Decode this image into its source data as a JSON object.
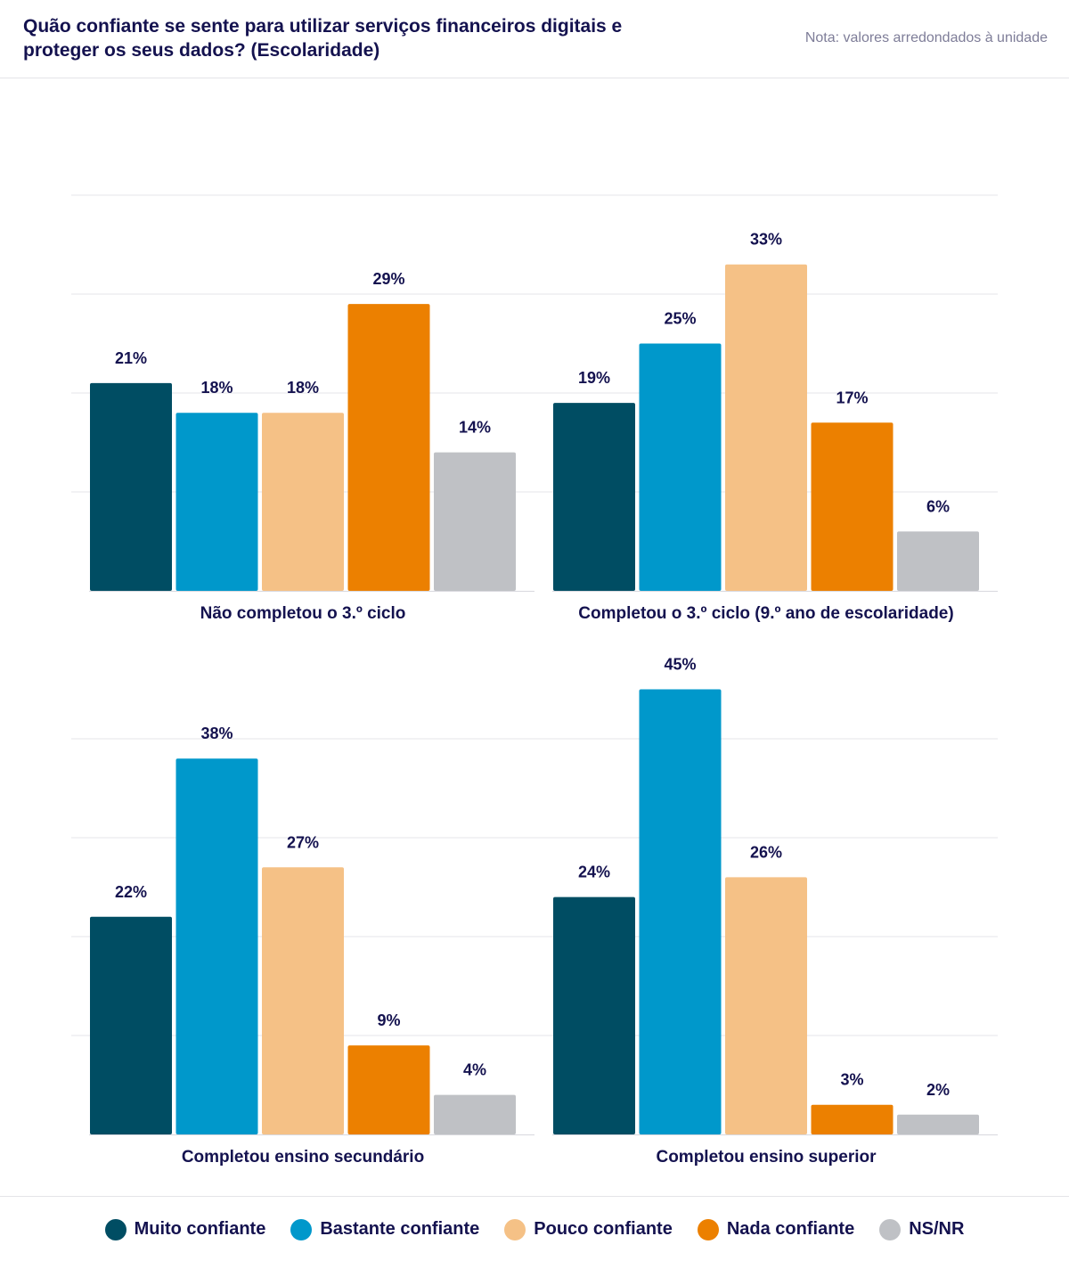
{
  "header": {
    "title": "Quão confiante se sente para utilizar serviços financeiros digitais e proteger os seus dados? (Escolaridade)",
    "note": "Nota: valores arredondados à unidade"
  },
  "legend": [
    {
      "label": "Muito confiante",
      "color": "#004d63"
    },
    {
      "label": "Bastante confiante",
      "color": "#0098cb"
    },
    {
      "label": "Pouco confiante",
      "color": "#f5c186"
    },
    {
      "label": "Nada confiante",
      "color": "#ec8000"
    },
    {
      "label": "NS/NR",
      "color": "#bfc1c5"
    }
  ],
  "chart_data": {
    "type": "bar",
    "series_names": [
      "Muito confiante",
      "Bastante confiante",
      "Pouco confiante",
      "Nada confiante",
      "NS/NR"
    ],
    "grid": true,
    "panels": [
      {
        "category": "Não completou o 3.º ciclo",
        "values": [
          21,
          18,
          18,
          29,
          14
        ],
        "labels": [
          "21%",
          "18%",
          "18%",
          "29%",
          "14%"
        ]
      },
      {
        "category": "Completou o 3.º ciclo (9.º ano de escolaridade)",
        "values": [
          19,
          25,
          33,
          17,
          6
        ],
        "labels": [
          "19%",
          "25%",
          "33%",
          "17%",
          "6%"
        ]
      },
      {
        "category": "Completou ensino secundário",
        "values": [
          22,
          38,
          27,
          9,
          4
        ],
        "labels": [
          "22%",
          "38%",
          "27%",
          "9%",
          "4%"
        ]
      },
      {
        "category": "Completou ensino superior",
        "values": [
          24,
          45,
          26,
          3,
          2
        ],
        "labels": [
          "24%",
          "45%",
          "26%",
          "3%",
          "2%"
        ]
      }
    ]
  }
}
